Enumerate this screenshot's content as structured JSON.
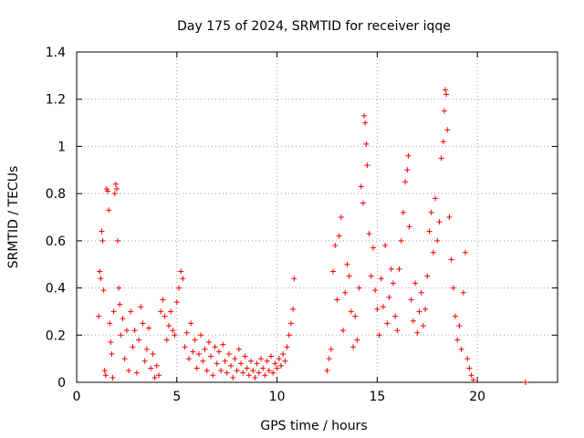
{
  "chart_data": {
    "type": "scatter",
    "title": "Day 175 of 2024, SRMTID for receiver iqqe",
    "xlabel": "GPS time / hours",
    "ylabel": "SRMTID / TECUs",
    "xlim": [
      0,
      24
    ],
    "ylim": [
      0,
      1.4
    ],
    "xticks": [
      0,
      5,
      10,
      15,
      20
    ],
    "xtick_labels": [
      "0",
      "5",
      "10",
      "15",
      "20"
    ],
    "yticks": [
      0,
      0.2,
      0.4,
      0.6,
      0.8,
      1.0,
      1.2,
      1.4
    ],
    "ytick_labels": [
      "0",
      "0.2",
      "0.4",
      "0.6",
      "0.8",
      "1",
      "1.2",
      "1.4"
    ],
    "grid": true,
    "marker": "+",
    "color": "#ff0000",
    "series": [
      {
        "name": "SRMTID",
        "points": [
          [
            1.1,
            0.28
          ],
          [
            1.15,
            0.47
          ],
          [
            1.2,
            0.44
          ],
          [
            1.25,
            0.64
          ],
          [
            1.3,
            0.6
          ],
          [
            1.35,
            0.39
          ],
          [
            1.4,
            0.05
          ],
          [
            1.45,
            0.03
          ],
          [
            1.5,
            0.82
          ],
          [
            1.55,
            0.81
          ],
          [
            1.6,
            0.73
          ],
          [
            1.65,
            0.25
          ],
          [
            1.7,
            0.17
          ],
          [
            1.75,
            0.12
          ],
          [
            1.8,
            0.02
          ],
          [
            1.85,
            0.3
          ],
          [
            1.9,
            0.8
          ],
          [
            1.95,
            0.84
          ],
          [
            2.0,
            0.82
          ],
          [
            2.05,
            0.6
          ],
          [
            2.1,
            0.4
          ],
          [
            2.15,
            0.33
          ],
          [
            2.2,
            0.2
          ],
          [
            2.3,
            0.27
          ],
          [
            2.4,
            0.1
          ],
          [
            2.5,
            0.22
          ],
          [
            2.6,
            0.05
          ],
          [
            2.7,
            0.3
          ],
          [
            2.8,
            0.15
          ],
          [
            2.9,
            0.22
          ],
          [
            3.0,
            0.04
          ],
          [
            3.1,
            0.18
          ],
          [
            3.2,
            0.32
          ],
          [
            3.3,
            0.25
          ],
          [
            3.4,
            0.09
          ],
          [
            3.5,
            0.14
          ],
          [
            3.6,
            0.23
          ],
          [
            3.7,
            0.06
          ],
          [
            3.8,
            0.12
          ],
          [
            3.9,
            0.02
          ],
          [
            4.0,
            0.07
          ],
          [
            4.1,
            0.03
          ],
          [
            4.2,
            0.3
          ],
          [
            4.3,
            0.35
          ],
          [
            4.4,
            0.28
          ],
          [
            4.5,
            0.18
          ],
          [
            4.6,
            0.24
          ],
          [
            4.7,
            0.3
          ],
          [
            4.8,
            0.22
          ],
          [
            4.9,
            0.2
          ],
          [
            5.0,
            0.34
          ],
          [
            5.1,
            0.4
          ],
          [
            5.2,
            0.47
          ],
          [
            5.3,
            0.44
          ],
          [
            5.4,
            0.15
          ],
          [
            5.5,
            0.21
          ],
          [
            5.6,
            0.1
          ],
          [
            5.7,
            0.25
          ],
          [
            5.8,
            0.13
          ],
          [
            5.9,
            0.18
          ],
          [
            6.0,
            0.06
          ],
          [
            6.1,
            0.12
          ],
          [
            6.2,
            0.2
          ],
          [
            6.3,
            0.09
          ],
          [
            6.4,
            0.14
          ],
          [
            6.5,
            0.05
          ],
          [
            6.6,
            0.17
          ],
          [
            6.7,
            0.11
          ],
          [
            6.8,
            0.03
          ],
          [
            6.9,
            0.15
          ],
          [
            7.0,
            0.08
          ],
          [
            7.1,
            0.13
          ],
          [
            7.2,
            0.05
          ],
          [
            7.3,
            0.16
          ],
          [
            7.4,
            0.09
          ],
          [
            7.5,
            0.04
          ],
          [
            7.6,
            0.12
          ],
          [
            7.7,
            0.07
          ],
          [
            7.8,
            0.02
          ],
          [
            7.9,
            0.1
          ],
          [
            8.0,
            0.05
          ],
          [
            8.1,
            0.14
          ],
          [
            8.2,
            0.08
          ],
          [
            8.3,
            0.04
          ],
          [
            8.4,
            0.11
          ],
          [
            8.5,
            0.06
          ],
          [
            8.6,
            0.03
          ],
          [
            8.7,
            0.09
          ],
          [
            8.8,
            0.05
          ],
          [
            8.9,
            0.02
          ],
          [
            9.0,
            0.08
          ],
          [
            9.1,
            0.04
          ],
          [
            9.2,
            0.1
          ],
          [
            9.3,
            0.06
          ],
          [
            9.4,
            0.03
          ],
          [
            9.5,
            0.09
          ],
          [
            9.6,
            0.05
          ],
          [
            9.7,
            0.11
          ],
          [
            9.8,
            0.04
          ],
          [
            9.9,
            0.08
          ],
          [
            10.0,
            0.06
          ],
          [
            10.1,
            0.1
          ],
          [
            10.2,
            0.07
          ],
          [
            10.3,
            0.12
          ],
          [
            10.4,
            0.09
          ],
          [
            10.5,
            0.15
          ],
          [
            10.6,
            0.2
          ],
          [
            10.7,
            0.25
          ],
          [
            10.8,
            0.31
          ],
          [
            10.85,
            0.44
          ],
          [
            12.5,
            0.05
          ],
          [
            12.6,
            0.1
          ],
          [
            12.7,
            0.14
          ],
          [
            12.8,
            0.47
          ],
          [
            12.9,
            0.58
          ],
          [
            13.0,
            0.35
          ],
          [
            13.1,
            0.62
          ],
          [
            13.2,
            0.7
          ],
          [
            13.3,
            0.22
          ],
          [
            13.4,
            0.38
          ],
          [
            13.5,
            0.5
          ],
          [
            13.6,
            0.45
          ],
          [
            13.7,
            0.3
          ],
          [
            13.8,
            0.15
          ],
          [
            13.9,
            0.28
          ],
          [
            14.0,
            0.18
          ],
          [
            14.1,
            0.4
          ],
          [
            14.2,
            0.83
          ],
          [
            14.3,
            0.76
          ],
          [
            14.35,
            1.13
          ],
          [
            14.4,
            1.1
          ],
          [
            14.45,
            1.01
          ],
          [
            14.5,
            0.92
          ],
          [
            14.6,
            0.63
          ],
          [
            14.7,
            0.45
          ],
          [
            14.8,
            0.57
          ],
          [
            14.9,
            0.39
          ],
          [
            15.0,
            0.31
          ],
          [
            15.1,
            0.2
          ],
          [
            15.2,
            0.44
          ],
          [
            15.3,
            0.32
          ],
          [
            15.4,
            0.58
          ],
          [
            15.5,
            0.25
          ],
          [
            15.6,
            0.36
          ],
          [
            15.7,
            0.48
          ],
          [
            15.8,
            0.42
          ],
          [
            15.9,
            0.28
          ],
          [
            16.0,
            0.22
          ],
          [
            16.1,
            0.48
          ],
          [
            16.2,
            0.6
          ],
          [
            16.3,
            0.72
          ],
          [
            16.4,
            0.85
          ],
          [
            16.5,
            0.9
          ],
          [
            16.55,
            0.96
          ],
          [
            16.6,
            0.66
          ],
          [
            16.7,
            0.35
          ],
          [
            16.8,
            0.26
          ],
          [
            16.9,
            0.42
          ],
          [
            17.0,
            0.21
          ],
          [
            17.1,
            0.3
          ],
          [
            17.2,
            0.38
          ],
          [
            17.3,
            0.24
          ],
          [
            17.4,
            0.31
          ],
          [
            17.5,
            0.45
          ],
          [
            17.6,
            0.64
          ],
          [
            17.7,
            0.72
          ],
          [
            17.8,
            0.55
          ],
          [
            17.9,
            0.78
          ],
          [
            18.0,
            0.6
          ],
          [
            18.1,
            0.68
          ],
          [
            18.2,
            0.95
          ],
          [
            18.3,
            1.02
          ],
          [
            18.35,
            1.15
          ],
          [
            18.4,
            1.24
          ],
          [
            18.45,
            1.22
          ],
          [
            18.5,
            1.07
          ],
          [
            18.6,
            0.7
          ],
          [
            18.7,
            0.52
          ],
          [
            18.8,
            0.4
          ],
          [
            18.9,
            0.28
          ],
          [
            19.0,
            0.18
          ],
          [
            19.1,
            0.24
          ],
          [
            19.2,
            0.14
          ],
          [
            19.3,
            0.38
          ],
          [
            19.4,
            0.55
          ],
          [
            19.5,
            0.1
          ],
          [
            19.6,
            0.06
          ],
          [
            19.7,
            0.03
          ],
          [
            19.8,
            0.01
          ],
          [
            22.4,
            0.0
          ]
        ]
      }
    ]
  }
}
